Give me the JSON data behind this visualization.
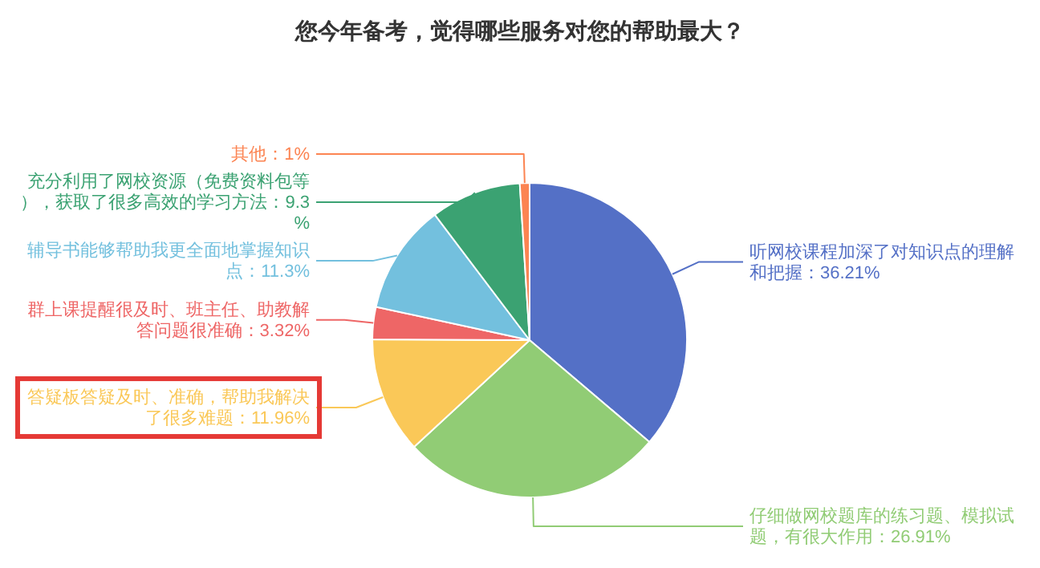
{
  "chart_data": {
    "type": "pie",
    "title": "您今年备考，觉得哪些服务对您的帮助最大？",
    "categories": [
      "听网校课程加深了对知识点的理解和把握",
      "仔细做网校题库的练习题、模拟试题，有很大作用",
      "答疑板答疑及时、准确，帮助我解决了很多难题",
      "群上课提醒很及时、班主任、助教解答问题很准确",
      "辅导书能够帮助我更全面地掌握知识点",
      "充分利用了网校资源（免费资料包等），获取了很多高效的学习方法",
      "其他"
    ],
    "values": [
      36.21,
      26.91,
      11.96,
      3.32,
      11.3,
      9.3,
      1
    ],
    "value_labels": [
      "36.21%",
      "26.91%",
      "11.96%",
      "3.32%",
      "11.3%",
      "9.3%",
      "1%"
    ],
    "colors": [
      "#5470c6",
      "#91cc75",
      "#fac858",
      "#ee6666",
      "#73c0de",
      "#3ba272",
      "#fc8452"
    ],
    "legend": false
  }
}
